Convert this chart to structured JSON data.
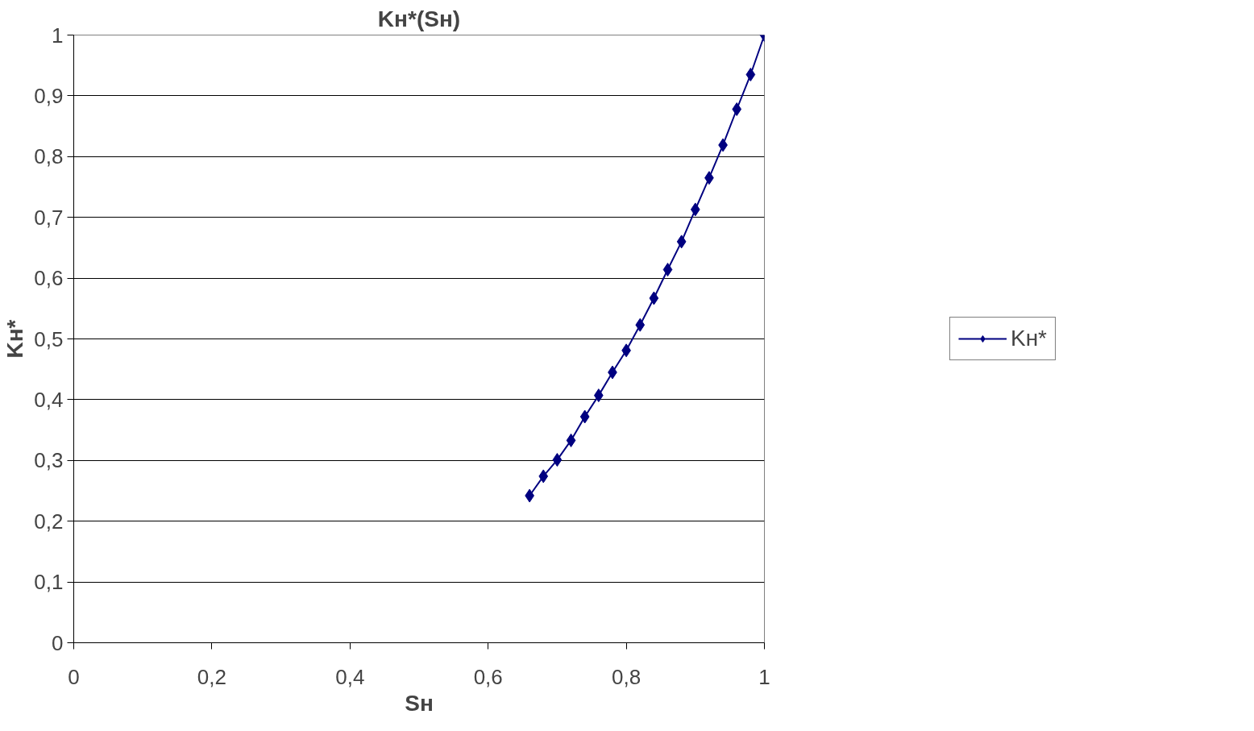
{
  "chart_data": {
    "type": "line",
    "title": "Kн*(Sн)",
    "xlabel": "Sн",
    "ylabel": "Kн*",
    "x": [
      0.66,
      0.68,
      0.7,
      0.72,
      0.74,
      0.76,
      0.78,
      0.8,
      0.82,
      0.84,
      0.86,
      0.88,
      0.9,
      0.92,
      0.94,
      0.96,
      0.98,
      1.0
    ],
    "series": [
      {
        "name": "Kн*",
        "color": "#000080",
        "values": [
          0.242,
          0.274,
          0.301,
          0.333,
          0.372,
          0.407,
          0.445,
          0.481,
          0.523,
          0.567,
          0.614,
          0.66,
          0.713,
          0.765,
          0.819,
          0.878,
          0.935,
          1.0
        ]
      }
    ],
    "xlim": [
      0,
      1
    ],
    "xticks": [
      0,
      {
        "value": 0.2,
        "label": "0,2"
      },
      {
        "value": 0.4,
        "label": "0,4"
      },
      {
        "value": 0.6,
        "label": "0,6"
      },
      {
        "value": 0.8,
        "label": "0,8"
      },
      1
    ],
    "ylim": [
      0,
      1
    ],
    "yticks": [
      0,
      {
        "value": 0.1,
        "label": "0,1"
      },
      {
        "value": 0.2,
        "label": "0,2"
      },
      {
        "value": 0.3,
        "label": "0,3"
      },
      {
        "value": 0.4,
        "label": "0,4"
      },
      {
        "value": 0.5,
        "label": "0,5"
      },
      {
        "value": 0.6,
        "label": "0,6"
      },
      {
        "value": 0.7,
        "label": "0,7"
      },
      {
        "value": 0.8,
        "label": "0,8"
      },
      {
        "value": 0.9,
        "label": "0,9"
      },
      1
    ],
    "grid": "y",
    "legend": "right",
    "marker": "diamond",
    "line_style": "solid"
  }
}
